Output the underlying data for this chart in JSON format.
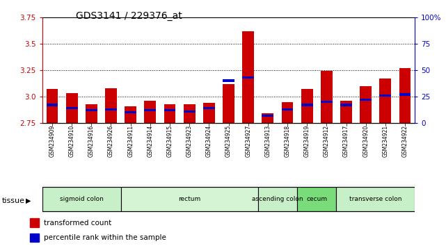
{
  "title": "GDS3141 / 229376_at",
  "samples": [
    "GSM234909",
    "GSM234910",
    "GSM234916",
    "GSM234926",
    "GSM234911",
    "GSM234914",
    "GSM234915",
    "GSM234923",
    "GSM234924",
    "GSM234925",
    "GSM234927",
    "GSM234913",
    "GSM234918",
    "GSM234919",
    "GSM234912",
    "GSM234917",
    "GSM234920",
    "GSM234921",
    "GSM234922"
  ],
  "transformed_count": [
    3.07,
    3.03,
    2.93,
    3.08,
    2.91,
    2.96,
    2.93,
    2.93,
    2.94,
    3.12,
    3.62,
    2.84,
    2.95,
    3.07,
    3.24,
    2.96,
    3.1,
    3.17,
    3.27
  ],
  "percentile_rank": [
    17,
    14,
    12,
    13,
    10,
    12,
    12,
    11,
    14,
    40,
    43,
    7,
    13,
    17,
    20,
    17,
    22,
    26,
    27
  ],
  "baseline": 2.75,
  "ylim_left": [
    2.75,
    3.75
  ],
  "ylim_right": [
    0,
    100
  ],
  "yticks_left": [
    2.75,
    3.0,
    3.25,
    3.5,
    3.75
  ],
  "yticks_right": [
    0,
    25,
    50,
    75,
    100
  ],
  "groups": [
    {
      "name": "sigmoid colon",
      "start": 0,
      "end": 3,
      "color": "#c8f0c8"
    },
    {
      "name": "rectum",
      "start": 4,
      "end": 10,
      "color": "#d4f4d4"
    },
    {
      "name": "ascending colon",
      "start": 11,
      "end": 12,
      "color": "#c8f0c8"
    },
    {
      "name": "cecum",
      "start": 13,
      "end": 14,
      "color": "#7adb7a"
    },
    {
      "name": "transverse colon",
      "start": 15,
      "end": 18,
      "color": "#c8f0c8"
    }
  ],
  "bar_color": "#cc0000",
  "blue_color": "#0000cc",
  "bar_width": 0.6,
  "red_axis_color": "#cc0000",
  "blue_axis_color": "#0000cc",
  "grid_lines": [
    3.0,
    3.25,
    3.5
  ],
  "xtick_bg": "#d8d8d8"
}
